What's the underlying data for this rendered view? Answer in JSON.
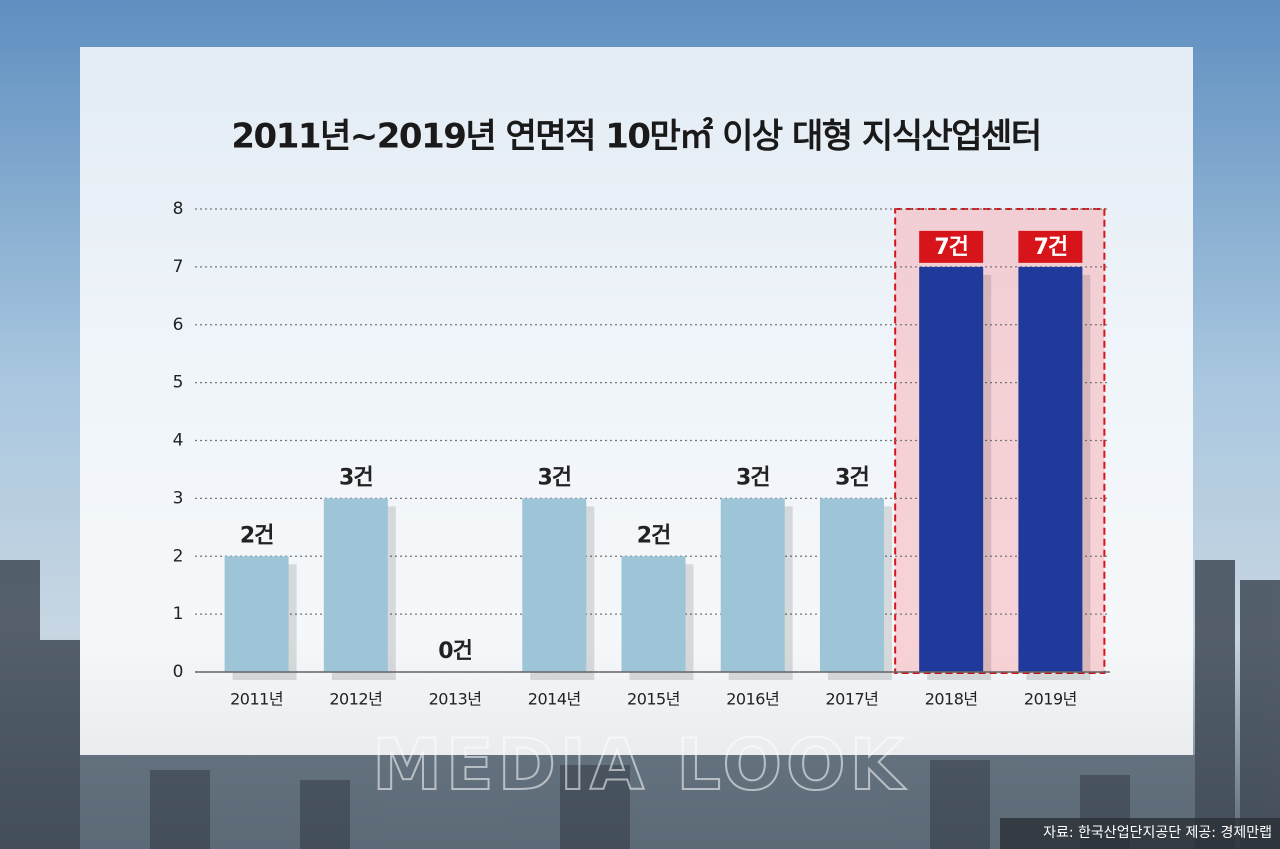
{
  "chart_data": {
    "type": "bar",
    "title": "2011년~2019년 연면적 10만㎡ 이상 대형 지식산업센터",
    "categories": [
      "2011년",
      "2012년",
      "2013년",
      "2014년",
      "2015년",
      "2016년",
      "2017년",
      "2018년",
      "2019년"
    ],
    "values": [
      2,
      3,
      0,
      3,
      2,
      3,
      3,
      7,
      7
    ],
    "value_labels": [
      "2건",
      "3건",
      "0건",
      "3건",
      "2건",
      "3건",
      "3건",
      "7건",
      "7건"
    ],
    "colors": [
      "#9ec4d8",
      "#9ec4d8",
      "#9ec4d8",
      "#9ec4d8",
      "#9ec4d8",
      "#9ec4d8",
      "#9ec4d8",
      "#1f3a9b",
      "#1f3a9b"
    ],
    "highlight": [
      false,
      false,
      false,
      false,
      false,
      false,
      false,
      true,
      true
    ],
    "highlight_color": "#d7141a",
    "ylim": [
      0,
      8
    ],
    "yticks": [
      0,
      1,
      2,
      3,
      4,
      5,
      6,
      7,
      8
    ],
    "grid": true,
    "source": "자료: 한국산업단지공단 제공: 경제만랩",
    "watermark": "MEDIA LOOK"
  }
}
